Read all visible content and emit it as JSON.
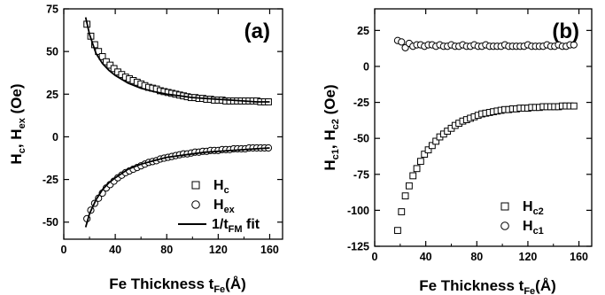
{
  "figure": {
    "panels": [
      {
        "id": "a",
        "panel_label": "(a)",
        "ylabel_main": "H",
        "ylabel_sub1": "c",
        "ylabel_mid": ", H",
        "ylabel_sub2": "ex",
        "ylabel_unit": " (Oe)",
        "xlabel_main": "Fe Thickness t",
        "xlabel_sub": "Fe",
        "xlabel_unit": "(Å)",
        "legend": [
          {
            "label": "H",
            "sub": "c",
            "marker": "square"
          },
          {
            "label": "H",
            "sub": "ex",
            "marker": "circle"
          },
          {
            "label": "1/t",
            "sub": "FM",
            "suffix": " fit",
            "marker": "line"
          }
        ]
      },
      {
        "id": "b",
        "panel_label": "(b)",
        "ylabel_main": "H",
        "ylabel_sub1": "c1",
        "ylabel_mid": ", H",
        "ylabel_sub2": "c2",
        "ylabel_unit": " (Oe)",
        "xlabel_main": "Fe Thickness t",
        "xlabel_sub": "Fe",
        "xlabel_unit": "(Å)",
        "legend": [
          {
            "label": "H",
            "sub": "c2",
            "marker": "square"
          },
          {
            "label": "H",
            "sub": "c1",
            "marker": "circle"
          }
        ]
      }
    ]
  },
  "chart_data": [
    {
      "type": "scatter",
      "panel": "(a)",
      "xlim": [
        0,
        170
      ],
      "ylim": [
        -60,
        75
      ],
      "xticks": [
        0,
        40,
        80,
        120,
        160
      ],
      "yticks": [
        -50,
        -25,
        0,
        25,
        50,
        75
      ],
      "series": [
        {
          "name": "Hc",
          "marker": "square",
          "x": [
            18,
            21,
            24,
            27,
            30,
            33,
            36,
            39,
            42,
            45,
            48,
            51,
            54,
            57,
            60,
            63,
            66,
            69,
            72,
            75,
            78,
            81,
            84,
            87,
            90,
            93,
            96,
            99,
            102,
            105,
            108,
            111,
            114,
            117,
            120,
            123,
            126,
            129,
            132,
            135,
            138,
            141,
            144,
            147,
            150,
            153,
            156,
            159
          ],
          "y": [
            66,
            59,
            54,
            50,
            47,
            44,
            42,
            40,
            38,
            36.5,
            35,
            34,
            33,
            32,
            31,
            30,
            29,
            28.5,
            28,
            27,
            26.5,
            26,
            25.5,
            25,
            24.5,
            24,
            23.5,
            23,
            23,
            22.5,
            22.5,
            22,
            22,
            21.5,
            21.5,
            21.5,
            21,
            21,
            21,
            21,
            21,
            21,
            21,
            21,
            21,
            20.5,
            20.5,
            20.5
          ]
        },
        {
          "name": "Hex",
          "marker": "circle",
          "x": [
            18,
            21,
            24,
            27,
            30,
            33,
            36,
            39,
            42,
            45,
            48,
            51,
            54,
            57,
            60,
            63,
            66,
            69,
            72,
            75,
            78,
            81,
            84,
            87,
            90,
            93,
            96,
            99,
            102,
            105,
            108,
            111,
            114,
            117,
            120,
            123,
            126,
            129,
            132,
            135,
            138,
            141,
            144,
            147,
            150,
            153,
            156,
            159
          ],
          "y": [
            -48,
            -43,
            -39,
            -36,
            -33,
            -30,
            -28,
            -26,
            -24,
            -22.5,
            -21,
            -20,
            -19,
            -18,
            -17,
            -16,
            -15,
            -14.5,
            -14,
            -13,
            -12.5,
            -12,
            -11.5,
            -11,
            -10.5,
            -10,
            -10,
            -9.5,
            -9,
            -9,
            -8.5,
            -8.5,
            -8,
            -8,
            -8,
            -7.5,
            -7.5,
            -7.5,
            -7,
            -7,
            -7,
            -7,
            -6.5,
            -6.5,
            -6.5,
            -6.5,
            -6.5,
            -6.5
          ]
        },
        {
          "name": "1/tFM fit",
          "marker": "line",
          "x": [
            17,
            20,
            25,
            30,
            35,
            40,
            50,
            60,
            70,
            80,
            90,
            100,
            110,
            120,
            130,
            140,
            150,
            160
          ],
          "y": [
            70,
            60,
            49,
            43,
            39,
            36,
            31.5,
            28.5,
            26.5,
            25,
            24,
            23,
            22.5,
            22,
            21.5,
            21,
            20.5,
            20.5
          ]
        },
        {
          "name": "1/tFM fit",
          "marker": "line",
          "x": [
            17,
            20,
            25,
            30,
            35,
            40,
            50,
            60,
            70,
            80,
            90,
            100,
            110,
            120,
            130,
            140,
            150,
            160
          ],
          "y": [
            -53,
            -45,
            -37,
            -31,
            -27,
            -24,
            -19,
            -16,
            -14,
            -12,
            -11,
            -10,
            -9,
            -8.5,
            -8,
            -7.5,
            -7,
            -6.5
          ]
        }
      ]
    },
    {
      "type": "scatter",
      "panel": "(b)",
      "xlim": [
        0,
        170
      ],
      "ylim": [
        -125,
        40
      ],
      "xticks": [
        0,
        40,
        80,
        120,
        160
      ],
      "yticks": [
        -125,
        -100,
        -75,
        -50,
        -25,
        0,
        25
      ],
      "series": [
        {
          "name": "Hc2",
          "marker": "square",
          "x": [
            18,
            21,
            24,
            27,
            30,
            33,
            36,
            39,
            42,
            45,
            48,
            51,
            54,
            57,
            60,
            63,
            66,
            69,
            72,
            75,
            78,
            81,
            84,
            87,
            90,
            93,
            96,
            99,
            102,
            105,
            108,
            111,
            114,
            117,
            120,
            123,
            126,
            129,
            132,
            135,
            138,
            141,
            144,
            147,
            150,
            153,
            156
          ],
          "y": [
            -114,
            -101,
            -90,
            -83,
            -76,
            -71,
            -66,
            -61,
            -58,
            -55,
            -52,
            -49,
            -47,
            -45,
            -43,
            -41,
            -39.5,
            -38,
            -37,
            -36,
            -35,
            -34,
            -33,
            -32.5,
            -32,
            -31.5,
            -31,
            -30.5,
            -30,
            -30,
            -29.5,
            -29.5,
            -29,
            -29,
            -29,
            -28.5,
            -28.5,
            -28.5,
            -28,
            -28,
            -28,
            -28,
            -28,
            -27.5,
            -27.5,
            -27.5,
            -27.5
          ]
        },
        {
          "name": "Hc1",
          "marker": "circle",
          "x": [
            18,
            21,
            24,
            27,
            30,
            33,
            36,
            39,
            42,
            45,
            48,
            51,
            54,
            57,
            60,
            63,
            66,
            69,
            72,
            75,
            78,
            81,
            84,
            87,
            90,
            93,
            96,
            99,
            102,
            105,
            108,
            111,
            114,
            117,
            120,
            123,
            126,
            129,
            132,
            135,
            138,
            141,
            144,
            147,
            150,
            153,
            156
          ],
          "y": [
            18,
            17,
            13,
            16,
            14,
            15,
            15,
            14,
            15,
            15,
            14,
            15,
            14,
            14,
            15,
            14,
            14,
            15,
            14,
            14,
            15,
            14,
            14,
            15,
            14,
            14,
            14,
            14,
            15,
            14,
            14,
            14,
            14,
            14,
            15,
            14,
            14,
            14,
            14,
            15,
            14,
            14,
            15,
            14,
            14,
            15,
            15
          ]
        }
      ]
    }
  ]
}
